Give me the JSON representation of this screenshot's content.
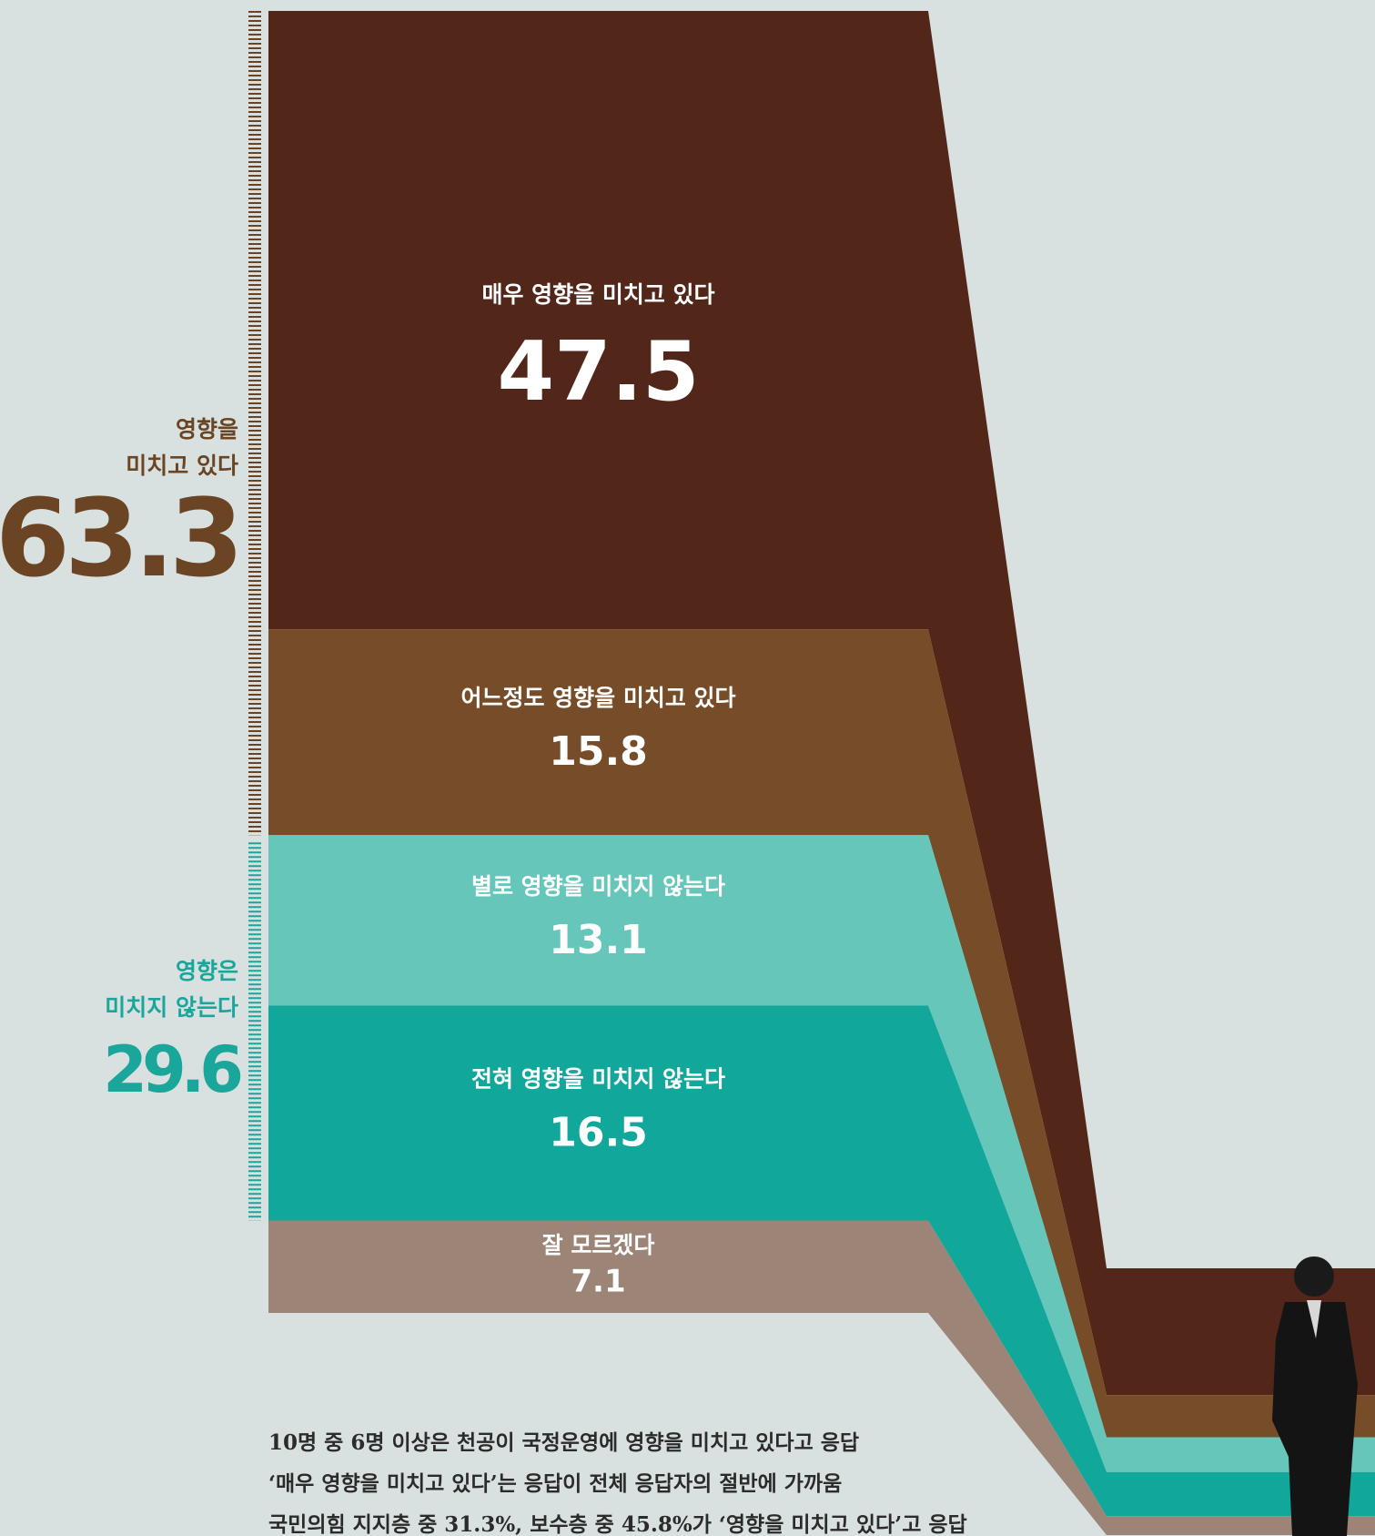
{
  "chart_data": {
    "type": "stacked-bar",
    "segments": [
      {
        "name": "매우 영향을 미치고 있다",
        "value": 47.5,
        "color": "#52271a"
      },
      {
        "name": "어느정도 영향을 미치고 있다",
        "value": 15.8,
        "color": "#764c29"
      },
      {
        "name": "별로 영향을 미치지 않는다",
        "value": 13.1,
        "color": "#65c6b9"
      },
      {
        "name": "전혀 영향을 미치지 않는다",
        "value": 16.5,
        "color": "#12a79b"
      },
      {
        "name": "잘 모르겠다",
        "value": 7.1,
        "color": "#9c8576"
      }
    ],
    "groups": [
      {
        "label": [
          "영향을",
          "미치고 있다"
        ],
        "value": 63.3,
        "color": "#6b4423"
      },
      {
        "label": [
          "영향은",
          "미치지 않는다"
        ],
        "value": 29.6,
        "color": "#1aa69a"
      }
    ],
    "notes": [
      "10명 중 6명 이상은 천공이 국정운영에 영향을 미치고 있다고 응답",
      "‘매우 영향을 미치고 있다’는 응답이 전체 응답자의 절반에 가까움",
      "국민의힘 지지층 중 31.3%, 보수층 중 45.8%가 ‘영향을 미치고 있다’고 응답"
    ]
  }
}
